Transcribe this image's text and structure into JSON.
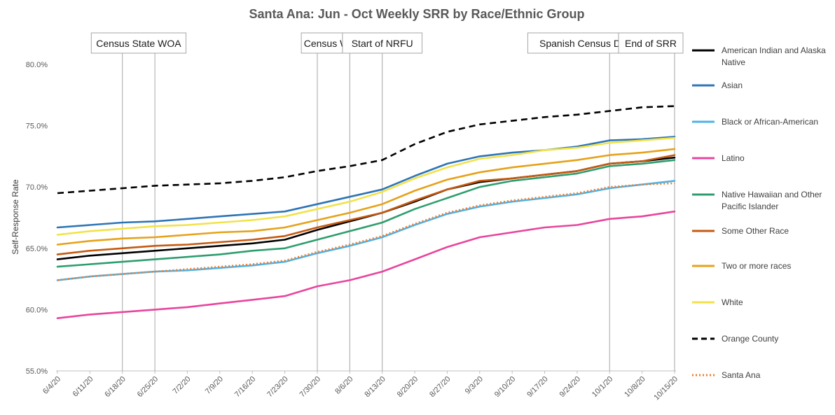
{
  "chart_data": {
    "type": "line",
    "title": "Santa Ana: Jun - Oct Weekly SRR by Race/Ethnic Group",
    "ylabel": "Self-Response Rate",
    "xlabel": "",
    "ylim": [
      55,
      80
    ],
    "yticks": [
      "55.0%",
      "60.0%",
      "65.0%",
      "70.0%",
      "75.0%",
      "80.0%"
    ],
    "y_tick_values": [
      55,
      60,
      65,
      70,
      75,
      80
    ],
    "x": [
      "6/4/20",
      "6/11/20",
      "6/18/20",
      "6/25/20",
      "7/2/20",
      "7/9/20",
      "7/16/20",
      "7/23/20",
      "7/30/20",
      "8/6/20",
      "8/13/20",
      "8/20/20",
      "8/27/20",
      "9/3/20",
      "9/10/20",
      "9/17/20",
      "9/24/20",
      "10/1/20",
      "10/8/20",
      "10/15/20"
    ],
    "events": [
      {
        "label": "Census State WOA",
        "dates": [
          "6/18/20",
          "6/25/20"
        ]
      },
      {
        "label": "Census WOA",
        "dates": [
          "7/30/20",
          "8/6/20"
        ]
      },
      {
        "label": "Start of NRFU",
        "dates": [
          "8/13/20"
        ]
      },
      {
        "label": "Spanish Census Day of Action",
        "dates": [
          "10/1/20"
        ]
      },
      {
        "label": "End of SRR",
        "dates": [
          "10/15/20"
        ]
      }
    ],
    "series": [
      {
        "name": "American Indian and Alaska Native",
        "color": "#000000",
        "style": "solid",
        "values": [
          64.1,
          64.4,
          64.6,
          64.8,
          65.0,
          65.2,
          65.4,
          65.7,
          66.5,
          67.2,
          67.9,
          68.8,
          69.8,
          70.4,
          70.7,
          71.0,
          71.3,
          71.9,
          72.1,
          72.4
        ]
      },
      {
        "name": "Asian",
        "color": "#2e75b6",
        "style": "solid",
        "values": [
          66.7,
          66.9,
          67.1,
          67.2,
          67.4,
          67.6,
          67.8,
          68.0,
          68.6,
          69.2,
          69.8,
          70.9,
          71.9,
          72.5,
          72.8,
          73.0,
          73.3,
          73.8,
          73.9,
          74.1
        ]
      },
      {
        "name": "Black or African-American",
        "color": "#4db3e6",
        "style": "solid",
        "values": [
          62.4,
          62.7,
          62.9,
          63.1,
          63.2,
          63.4,
          63.6,
          63.9,
          64.6,
          65.2,
          65.9,
          66.9,
          67.8,
          68.4,
          68.8,
          69.1,
          69.4,
          69.9,
          70.2,
          70.5
        ]
      },
      {
        "name": "Latino",
        "color": "#e8459c",
        "style": "solid",
        "values": [
          59.3,
          59.6,
          59.8,
          60.0,
          60.2,
          60.5,
          60.8,
          61.1,
          61.9,
          62.4,
          63.1,
          64.1,
          65.1,
          65.9,
          66.3,
          66.7,
          66.9,
          67.4,
          67.6,
          68.0
        ]
      },
      {
        "name": "Native Hawaiian and Other Pacific Islander",
        "color": "#2e9e6e",
        "style": "solid",
        "values": [
          63.5,
          63.7,
          63.9,
          64.1,
          64.3,
          64.5,
          64.8,
          65.0,
          65.7,
          66.4,
          67.1,
          68.2,
          69.1,
          70.0,
          70.5,
          70.8,
          71.1,
          71.7,
          71.9,
          72.2
        ]
      },
      {
        "name": "Some Other Race",
        "color": "#c55a11",
        "style": "solid",
        "values": [
          64.5,
          64.8,
          65.0,
          65.2,
          65.3,
          65.5,
          65.7,
          66.0,
          66.7,
          67.3,
          67.9,
          68.9,
          69.8,
          70.5,
          70.7,
          71.0,
          71.3,
          71.9,
          72.1,
          72.6
        ]
      },
      {
        "name": "Two or more races",
        "color": "#e6a219",
        "style": "solid",
        "values": [
          65.3,
          65.6,
          65.8,
          65.9,
          66.1,
          66.3,
          66.4,
          66.7,
          67.3,
          67.9,
          68.6,
          69.7,
          70.6,
          71.2,
          71.6,
          71.9,
          72.2,
          72.6,
          72.8,
          73.1
        ]
      },
      {
        "name": "White",
        "color": "#f2e24a",
        "style": "solid",
        "values": [
          66.1,
          66.4,
          66.6,
          66.8,
          66.9,
          67.1,
          67.3,
          67.6,
          68.2,
          68.8,
          69.6,
          70.7,
          71.6,
          72.3,
          72.6,
          73.0,
          73.2,
          73.6,
          73.8,
          74.0
        ]
      },
      {
        "name": "Orange County",
        "color": "#000000",
        "style": "dashed",
        "values": [
          69.5,
          69.7,
          69.9,
          70.1,
          70.2,
          70.3,
          70.5,
          70.8,
          71.3,
          71.7,
          72.2,
          73.5,
          74.5,
          75.1,
          75.4,
          75.7,
          75.9,
          76.2,
          76.5,
          76.6
        ]
      },
      {
        "name": "Santa Ana",
        "color": "#ed7d31",
        "style": "dotted",
        "values": [
          62.4,
          62.7,
          62.9,
          63.1,
          63.3,
          63.5,
          63.7,
          64.0,
          64.7,
          65.3,
          66.0,
          67.0,
          67.9,
          68.5,
          68.9,
          69.2,
          69.5,
          70.0,
          70.2,
          70.3
        ]
      }
    ]
  }
}
